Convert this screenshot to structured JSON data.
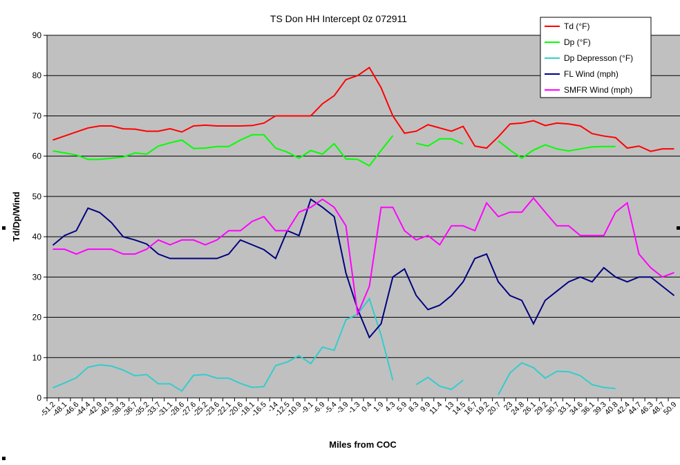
{
  "chart_data": {
    "type": "line",
    "title": "TS Don HH Intercept 0z 072911",
    "x_label": "Miles from COC",
    "y_label": "Td/Dp/Wind",
    "categories": [
      "-51.2",
      "-48.1",
      "-46.6",
      "-44.4",
      "-42.9",
      "-40.3",
      "-38.3",
      "-36.7",
      "-35.2",
      "-33.7",
      "-31.1",
      "-28.6",
      "-27.6",
      "-25.2",
      "-23.6",
      "-22.1",
      "-20.6",
      "-18.1",
      "-16.5",
      "-14",
      "-12.5",
      "-10.9",
      "-9.1",
      "-6.9",
      "-5.4",
      "-3.9",
      "-1.3",
      "0.4",
      "1.9",
      "4.3",
      "5.9",
      "8.3",
      "9.9",
      "11.4",
      "13",
      "14.5",
      "16.7",
      "19.2",
      "20.7",
      "23",
      "24.8",
      "26.1",
      "29.2",
      "30.7",
      "33.1",
      "34.6",
      "36.1",
      "39.3",
      "40.8",
      "42.4",
      "44.7",
      "46.3",
      "48.7",
      "50.9"
    ],
    "series": [
      {
        "name": "Td (°F)",
        "color": "#ff0000",
        "values": [
          64,
          65,
          66,
          67,
          67.5,
          67.5,
          66.8,
          66.7,
          66.2,
          66.2,
          66.8,
          66,
          67.5,
          67.7,
          67.5,
          67.5,
          67.5,
          67.6,
          68.2,
          70,
          70,
          70,
          70,
          73,
          75,
          79,
          80,
          82,
          77,
          70,
          65.7,
          66.2,
          67.8,
          67,
          66.2,
          67.4,
          62.5,
          62,
          64.8,
          68,
          68.2,
          68.8,
          67.6,
          68.2,
          68,
          67.5,
          65.6,
          65,
          64.6,
          62,
          62.5,
          61.2,
          61.8,
          61.8
        ]
      },
      {
        "name": "Dp (°F)",
        "color": "#00ff00",
        "values": [
          61.3,
          60.8,
          60.3,
          59.2,
          59.2,
          59.5,
          59.8,
          60.8,
          60.5,
          62.5,
          63.3,
          64,
          61.9,
          62,
          62.4,
          62.4,
          64,
          65.3,
          65.3,
          62,
          61,
          59.5,
          61.4,
          60.5,
          63.1,
          59.3,
          59.2,
          57.6,
          61.4,
          65.1,
          null,
          63.2,
          62.5,
          64.3,
          64.3,
          63,
          null,
          null,
          63.8,
          61.5,
          59.5,
          61.5,
          62.8,
          61.8,
          61.3,
          61.8,
          62.3,
          62.4,
          62.4,
          null,
          null,
          null,
          null,
          null
        ]
      },
      {
        "name": "Dp Depresson (°F)",
        "color": "#33cccc",
        "values": [
          2.5,
          3.7,
          5,
          7.6,
          8.2,
          7.9,
          6.9,
          5.5,
          5.8,
          3.5,
          3.5,
          1.7,
          5.6,
          5.8,
          4.9,
          4.9,
          3.6,
          2.6,
          2.8,
          8,
          8.9,
          10.5,
          8.5,
          12.6,
          11.8,
          19.4,
          20.8,
          24.6,
          15.6,
          4.4,
          null,
          3.3,
          5.1,
          2.9,
          2.1,
          4.4,
          null,
          null,
          0.8,
          6.2,
          8.7,
          7.5,
          4.9,
          6.6,
          6.5,
          5.5,
          3.3,
          2.6,
          2.3,
          null,
          null,
          null,
          null,
          null
        ]
      },
      {
        "name": "FL Wind (mph)",
        "color": "#000080",
        "values": [
          37.9,
          40.3,
          41.5,
          47.1,
          46,
          43.5,
          40,
          39.2,
          38.2,
          35.7,
          34.6,
          34.6,
          34.6,
          34.6,
          34.6,
          35.7,
          39.2,
          38,
          36.8,
          34.6,
          41.5,
          40.3,
          49.3,
          47.3,
          45,
          31,
          22,
          15,
          18.4,
          30,
          32,
          25.4,
          21.9,
          23,
          25.4,
          28.8,
          34.6,
          35.7,
          28.8,
          25.4,
          24.2,
          18.4,
          24.2,
          26.5,
          28.8,
          30,
          28.8,
          32.3,
          30,
          28.8,
          30,
          30,
          27.7,
          25.4
        ]
      },
      {
        "name": "SMFR Wind (mph)",
        "color": "#ff00ff",
        "values": [
          36.9,
          36.9,
          35.7,
          36.9,
          36.9,
          36.9,
          35.7,
          35.7,
          36.9,
          39.2,
          38,
          39.2,
          39.2,
          38,
          39.2,
          41.5,
          41.5,
          43.8,
          45,
          41.5,
          41.5,
          46.1,
          47.3,
          49.3,
          47.3,
          42.7,
          20.8,
          27.7,
          47.3,
          47.3,
          41.5,
          39.2,
          40.3,
          38,
          42.7,
          42.7,
          41.5,
          48.4,
          45,
          46.1,
          46.1,
          49.6,
          46.1,
          42.7,
          42.7,
          40.3,
          40.3,
          40.3,
          46.1,
          48.4,
          35.7,
          32.3,
          30,
          31.1
        ]
      }
    ],
    "ylim": [
      0,
      90
    ],
    "yticks": [
      0,
      10,
      20,
      30,
      40,
      50,
      60,
      70,
      80,
      90
    ],
    "grid": true,
    "legend": "top-right"
  }
}
